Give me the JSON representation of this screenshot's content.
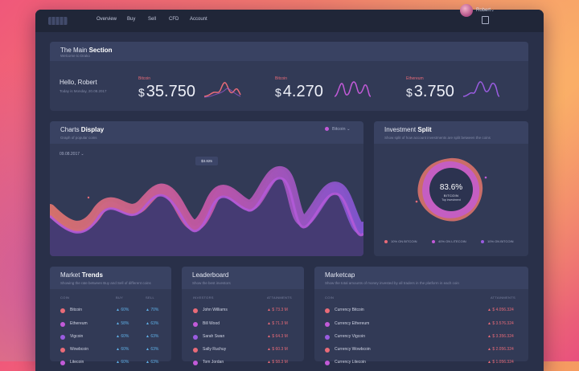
{
  "nav": {
    "items": [
      "Overview",
      "Buy",
      "Sell",
      "CFD",
      "Account"
    ]
  },
  "user": {
    "name": "Robert"
  },
  "main": {
    "title": "The Main",
    "title_bold": "Section",
    "subtitle": "Welcome to Drako",
    "greeting": "Hello, Robert",
    "greeting_sub": "Today is Monday, 20.08.2017",
    "currency_symbol": "$",
    "coins": [
      {
        "name": "Bitcoin",
        "value": "35.750"
      },
      {
        "name": "Bitcoin",
        "value": "4.270"
      },
      {
        "name": "Ethereum",
        "value": "3.750"
      }
    ]
  },
  "charts": {
    "title": "Charts",
    "title_bold": "Display",
    "subtitle": "Graph of popular coins",
    "coin": "Bitcoin",
    "date": "09.08.2017",
    "tooltip": "$3.825"
  },
  "split": {
    "title": "Investment",
    "title_bold": "Split",
    "subtitle": "Show split of how account investments are split between the coins",
    "percent": "83.6%",
    "label": "BITCOIN",
    "sub": "Top investment",
    "legend": [
      "10% ON BITCOIN",
      "40% ON LITECOIN",
      "10% ON BITCOIN"
    ]
  },
  "trends": {
    "title": "Market",
    "title_bold": "Trends",
    "subtitle": "Showing the rate between Buy and Sell of different coins",
    "cols": [
      "COIN",
      "BUY",
      "SELL"
    ],
    "rows": [
      {
        "coin": "Bitcoin",
        "buy": "▲ 60%",
        "sell": "▲ 70%"
      },
      {
        "coin": "Ethereum",
        "buy": "▲ 58%",
        "sell": "▲ 63%"
      },
      {
        "coin": "Vigcoin",
        "buy": "▲ 60%",
        "sell": "▲ 63%"
      },
      {
        "coin": "Wowbcoin",
        "buy": "▲ 60%",
        "sell": "▲ 63%"
      },
      {
        "coin": "Litecoin",
        "buy": "▲ 60%",
        "sell": "▲ 63%"
      }
    ]
  },
  "leader": {
    "title": "Leaderboard",
    "subtitle": "Show the best investors",
    "cols": [
      "INVESTORS",
      "ATTAINMENTS"
    ],
    "rows": [
      {
        "name": "John Williams",
        "value": "▲ $ 73.3 M"
      },
      {
        "name": "Bill Wood",
        "value": "▲ $ 71.3 M"
      },
      {
        "name": "Sarah Swan",
        "value": "▲ $ 64.3 M"
      },
      {
        "name": "Sally Ruchuy",
        "value": "▲ $ 60.3 M"
      },
      {
        "name": "Tom Jordan",
        "value": "▲ $ 58.3 M"
      }
    ]
  },
  "cap": {
    "title": "Marketcap",
    "subtitle": "Show the total amounts of money invested by all traders in the platform in each coin",
    "cols": [
      "COIN",
      "ATTAINMENTS"
    ],
    "rows": [
      {
        "coin": "Currency Bitcoin",
        "value": "▲ $ 4.056.324"
      },
      {
        "coin": "Currency Ethereum",
        "value": "▲ $ 3.576.324"
      },
      {
        "coin": "Currency Vigcoin",
        "value": "▲ $ 3.356.324"
      },
      {
        "coin": "Currency Wowbcoin",
        "value": "▲ $ 2.056.324"
      },
      {
        "coin": "Currency Litecoin",
        "value": "▲ $ 1.056.324"
      }
    ]
  },
  "colors": {
    "accent": "#e96b78",
    "purple": "#9a5ce0",
    "panel": "#323a56"
  }
}
